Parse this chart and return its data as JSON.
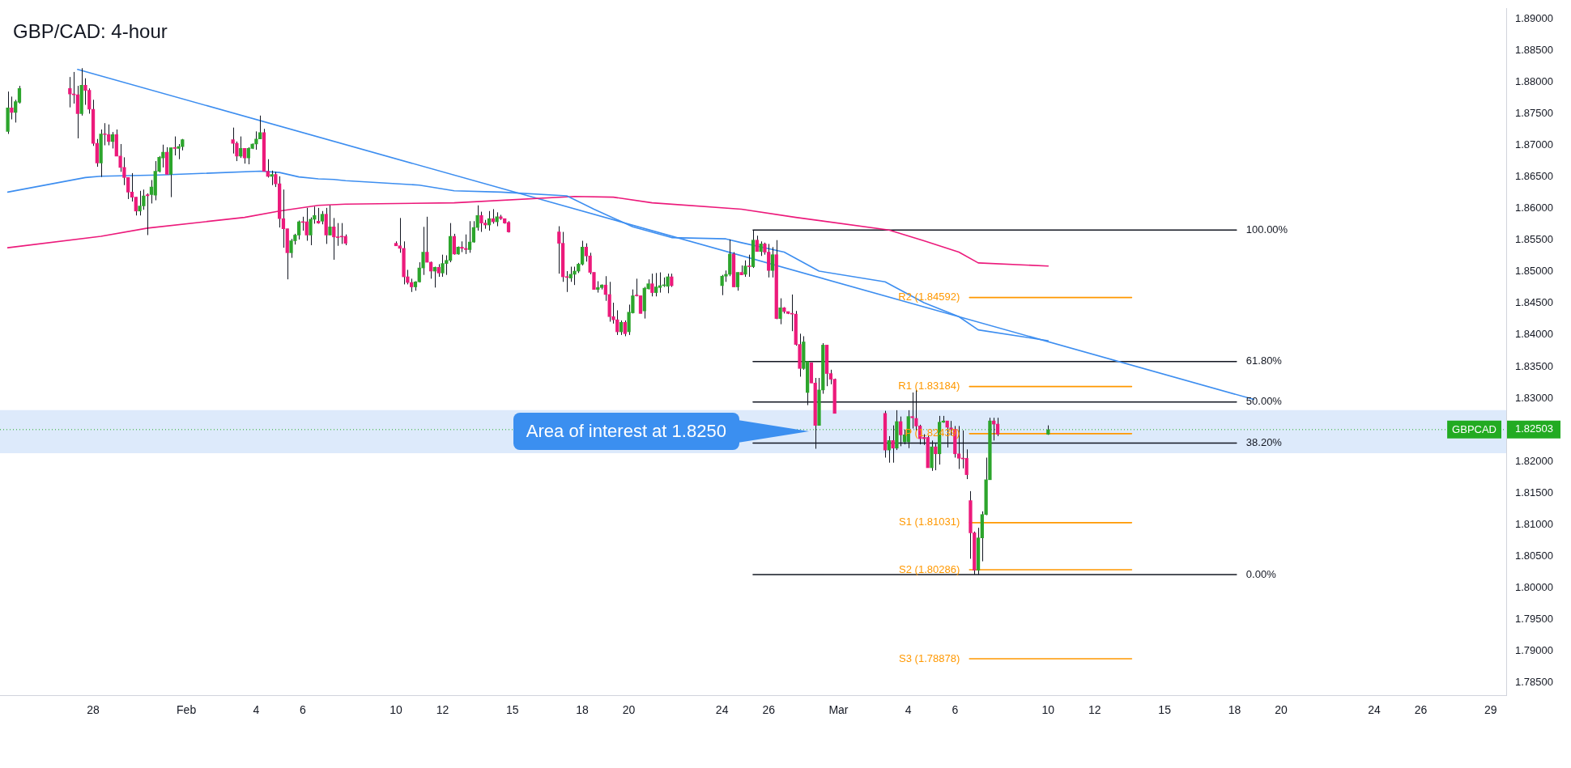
{
  "chart_data": {
    "type": "candlestick",
    "title": "GBP/CAD: 4-hour",
    "x": [
      "--01-24T08:00",
      "--01-24T12:00",
      "--01-24T16:00",
      "--01-24T20:00",
      "--01-27T00:00",
      "--01-27T04:00",
      "--01-27T08:00",
      "--01-27T12:00",
      "--01-27T16:00",
      "--01-27T20:00",
      "--01-28T00:00",
      "--01-28T04:00",
      "--01-28T08:00",
      "--01-28T12:00",
      "--01-28T16:00",
      "--01-28T20:00",
      "--01-29T00:00",
      "--01-29T04:00",
      "--01-29T08:00",
      "--01-29T12:00",
      "--01-29T16:00",
      "--01-29T20:00",
      "--01-30T00:00",
      "--01-30T04:00",
      "--01-30T08:00",
      "--01-30T12:00",
      "--01-30T16:00",
      "--01-30T20:00",
      "--01-31T00:00",
      "--01-31T04:00",
      "--01-31T08:00",
      "--01-31T12:00",
      "--01-31T16:00",
      "--01-31T20:00",
      "--02-03T00:00",
      "--02-03T04:00",
      "--02-03T08:00",
      "--02-03T12:00",
      "--02-03T16:00",
      "--02-03T20:00",
      "--02-04T00:00",
      "--02-04T04:00",
      "--02-04T08:00",
      "--02-04T12:00",
      "--02-04T16:00",
      "--02-04T20:00",
      "--02-05T00:00",
      "--02-05T04:00",
      "--02-05T08:00",
      "--02-05T12:00",
      "--02-05T16:00",
      "--02-05T20:00",
      "--02-06T00:00",
      "--02-06T04:00",
      "--02-06T08:00",
      "--02-06T12:00",
      "--02-06T16:00",
      "--02-06T20:00",
      "--02-07T00:00",
      "--02-07T04:00",
      "--02-07T08:00",
      "--02-07T12:00",
      "--02-07T16:00",
      "--02-07T20:00",
      "--02-10T00:00",
      "--02-10T04:00",
      "--02-10T08:00",
      "--02-10T12:00",
      "--02-10T16:00",
      "--02-10T20:00",
      "--02-11T00:00",
      "--02-11T04:00",
      "--02-11T08:00",
      "--02-11T12:00",
      "--02-11T16:00",
      "--02-11T20:00",
      "--02-12T00:00",
      "--02-12T04:00",
      "--02-12T08:00",
      "--02-12T12:00",
      "--02-12T16:00",
      "--02-12T20:00",
      "--02-13T00:00",
      "--02-13T04:00",
      "--02-13T08:00",
      "--02-13T12:00",
      "--02-13T16:00",
      "--02-13T20:00",
      "--02-14T00:00",
      "--02-14T04:00",
      "--02-14T08:00",
      "--02-14T12:00",
      "--02-14T16:00",
      "--02-14T20:00",
      "--02-17T00:00",
      "--02-17T04:00",
      "--02-17T08:00",
      "--02-17T12:00",
      "--02-17T16:00",
      "--02-17T20:00",
      "--02-18T00:00",
      "--02-18T04:00",
      "--02-18T08:00",
      "--02-18T12:00",
      "--02-18T16:00",
      "--02-18T20:00",
      "--02-19T00:00",
      "--02-19T04:00",
      "--02-19T08:00",
      "--02-19T12:00",
      "--02-19T16:00",
      "--02-19T20:00",
      "--02-20T00:00",
      "--02-20T04:00",
      "--02-20T08:00",
      "--02-20T12:00",
      "--02-20T16:00",
      "--02-20T20:00",
      "--02-21T00:00",
      "--02-21T04:00",
      "--02-21T08:00",
      "--02-21T12:00",
      "--02-21T16:00",
      "--02-21T20:00",
      "--02-24T00:00",
      "--02-24T04:00",
      "--02-24T08:00",
      "--02-24T12:00",
      "--02-24T16:00",
      "--02-24T20:00",
      "--02-25T00:00",
      "--02-25T04:00",
      "--02-25T08:00",
      "--02-25T12:00",
      "--02-25T16:00",
      "--02-25T20:00",
      "--02-26T00:00",
      "--02-26T04:00",
      "--02-26T08:00",
      "--02-26T12:00",
      "--02-26T16:00",
      "--02-26T20:00",
      "--02-27T00:00",
      "--02-27T04:00",
      "--02-27T08:00",
      "--02-27T12:00",
      "--02-27T16:00",
      "--02-27T20:00",
      "--02-28T00:00",
      "--02-28T04:00",
      "--02-28T08:00",
      "--02-28T12:00",
      "--02-28T16:00",
      "--02-28T20:00",
      "--03-03T00:00",
      "--03-03T04:00",
      "--03-03T08:00",
      "--03-03T12:00",
      "--03-03T16:00",
      "--03-03T20:00",
      "--03-04T00:00",
      "--03-04T04:00",
      "--03-04T08:00",
      "--03-04T12:00",
      "--03-04T16:00",
      "--03-04T20:00",
      "--03-05T00:00",
      "--03-05T04:00",
      "--03-05T08:00",
      "--03-05T12:00",
      "--03-05T16:00",
      "--03-05T20:00",
      "--03-06T00:00",
      "--03-06T04:00",
      "--03-06T08:00",
      "--03-06T12:00",
      "--03-06T16:00",
      "--03-06T20:00",
      "--03-07T00:00",
      "--03-07T04:00",
      "--03-07T08:00",
      "--03-07T12:00",
      "--03-07T16:00",
      "--03-07T20:00",
      "--03-10T00:00"
    ],
    "ohlc": [
      [
        1.8722,
        1.8785,
        1.8718,
        1.8759
      ],
      [
        1.8759,
        1.8777,
        1.8741,
        1.8752
      ],
      [
        1.8752,
        1.8772,
        1.8736,
        1.8769
      ],
      [
        1.8768,
        1.8794,
        1.8766,
        1.879
      ],
      [
        1.879,
        1.8808,
        1.876,
        1.8781
      ],
      [
        1.8781,
        1.8816,
        1.8766,
        1.878
      ],
      [
        1.878,
        1.8794,
        1.8711,
        1.875
      ],
      [
        1.875,
        1.8822,
        1.8747,
        1.8795
      ],
      [
        1.8795,
        1.8806,
        1.8764,
        1.8787
      ],
      [
        1.8787,
        1.879,
        1.875,
        1.8757
      ],
      [
        1.8757,
        1.8772,
        1.8699,
        1.8703
      ],
      [
        1.8703,
        1.871,
        1.8666,
        1.8672
      ],
      [
        1.8672,
        1.8725,
        1.865,
        1.8718
      ],
      [
        1.8718,
        1.8735,
        1.87,
        1.8717
      ],
      [
        1.8717,
        1.8733,
        1.87,
        1.8706
      ],
      [
        1.8706,
        1.8721,
        1.8695,
        1.8717
      ],
      [
        1.8717,
        1.8725,
        1.8683,
        1.8683
      ],
      [
        1.8683,
        1.8702,
        1.8658,
        1.8665
      ],
      [
        1.8665,
        1.8681,
        1.8637,
        1.8649
      ],
      [
        1.8649,
        1.8649,
        1.8615,
        1.8626
      ],
      [
        1.8626,
        1.8656,
        1.8611,
        1.8618
      ],
      [
        1.8618,
        1.8618,
        1.8589,
        1.8596
      ],
      [
        1.8596,
        1.8628,
        1.8589,
        1.8604
      ],
      [
        1.8604,
        1.863,
        1.8598,
        1.862
      ],
      [
        1.8622,
        1.8624,
        1.8558,
        1.862
      ],
      [
        1.8622,
        1.8645,
        1.8608,
        1.8634
      ],
      [
        1.8621,
        1.8675,
        1.8613,
        1.8659
      ],
      [
        1.8659,
        1.8683,
        1.8657,
        1.8681
      ],
      [
        1.868,
        1.8701,
        1.8665,
        1.8689
      ],
      [
        1.8689,
        1.8697,
        1.8654,
        1.8654
      ],
      [
        1.8654,
        1.8696,
        1.8618,
        1.8696
      ],
      [
        1.8696,
        1.8714,
        1.8684,
        1.8695
      ],
      [
        1.8695,
        1.8702,
        1.8678,
        1.8698
      ],
      [
        1.8698,
        1.871,
        1.8692,
        1.8709
      ],
      [
        1.8709,
        1.8728,
        1.8687,
        1.8703
      ],
      [
        1.8703,
        1.8706,
        1.8675,
        1.8683
      ],
      [
        1.8683,
        1.8714,
        1.868,
        1.8695
      ],
      [
        1.8695,
        1.8695,
        1.8671,
        1.868
      ],
      [
        1.868,
        1.8697,
        1.867,
        1.8695
      ],
      [
        1.8695,
        1.8703,
        1.8694,
        1.8702
      ],
      [
        1.8702,
        1.8722,
        1.8693,
        1.871
      ],
      [
        1.871,
        1.8747,
        1.871,
        1.872
      ],
      [
        1.872,
        1.8726,
        1.8659,
        1.8659
      ],
      [
        1.8659,
        1.8678,
        1.8649,
        1.8651
      ],
      [
        1.8651,
        1.866,
        1.8637,
        1.8654
      ],
      [
        1.8654,
        1.8658,
        1.8634,
        1.8639
      ],
      [
        1.8639,
        1.8651,
        1.857,
        1.8584
      ],
      [
        1.8584,
        1.863,
        1.8538,
        1.8568
      ],
      [
        1.8568,
        1.8568,
        1.8488,
        1.853
      ],
      [
        1.853,
        1.8552,
        1.8522,
        1.8549
      ],
      [
        1.8549,
        1.856,
        1.8543,
        1.8558
      ],
      [
        1.8558,
        1.8581,
        1.8551,
        1.8579
      ],
      [
        1.8579,
        1.8587,
        1.8565,
        1.8578
      ],
      [
        1.8579,
        1.8601,
        1.8549,
        1.8558
      ],
      [
        1.8558,
        1.8586,
        1.8542,
        1.8583
      ],
      [
        1.8583,
        1.8603,
        1.8576,
        1.8589
      ],
      [
        1.858,
        1.8601,
        1.8576,
        1.8577
      ],
      [
        1.858,
        1.8596,
        1.8575,
        1.8591
      ],
      [
        1.8591,
        1.8601,
        1.8544,
        1.8558
      ],
      [
        1.8558,
        1.8605,
        1.8558,
        1.8571
      ],
      [
        1.8571,
        1.8585,
        1.8519,
        1.8555
      ],
      [
        1.8555,
        1.8577,
        1.8541,
        1.8554
      ],
      [
        1.8556,
        1.8577,
        1.8544,
        1.8555
      ],
      [
        1.8556,
        1.8559,
        1.8542,
        1.8545
      ],
      [
        1.8545,
        1.8548,
        1.8541,
        1.8541
      ],
      [
        1.8541,
        1.8585,
        1.853,
        1.8537
      ],
      [
        1.8537,
        1.8548,
        1.848,
        1.8492
      ],
      [
        1.8492,
        1.8503,
        1.848,
        1.8483
      ],
      [
        1.8483,
        1.8489,
        1.8468,
        1.8476
      ],
      [
        1.8476,
        1.8485,
        1.847,
        1.8484
      ],
      [
        1.8484,
        1.8515,
        1.8483,
        1.8506
      ],
      [
        1.8506,
        1.8571,
        1.8495,
        1.8531
      ],
      [
        1.8531,
        1.8587,
        1.8515,
        1.8515
      ],
      [
        1.8515,
        1.8516,
        1.8489,
        1.8501
      ],
      [
        1.8501,
        1.8508,
        1.8475,
        1.8507
      ],
      [
        1.8507,
        1.8512,
        1.8492,
        1.8498
      ],
      [
        1.8498,
        1.8527,
        1.8492,
        1.8513
      ],
      [
        1.8513,
        1.8526,
        1.8495,
        1.8518
      ],
      [
        1.8518,
        1.8577,
        1.8515,
        1.8556
      ],
      [
        1.8556,
        1.856,
        1.8527,
        1.8528
      ],
      [
        1.8528,
        1.854,
        1.8527,
        1.8539
      ],
      [
        1.8539,
        1.8548,
        1.8531,
        1.8537
      ],
      [
        1.8537,
        1.8559,
        1.8528,
        1.8535
      ],
      [
        1.8535,
        1.858,
        1.853,
        1.8547
      ],
      [
        1.8547,
        1.858,
        1.8546,
        1.857
      ],
      [
        1.857,
        1.8605,
        1.8565,
        1.8589
      ],
      [
        1.8589,
        1.8595,
        1.8563,
        1.8577
      ],
      [
        1.8577,
        1.8582,
        1.8568,
        1.8574
      ],
      [
        1.8574,
        1.8596,
        1.8565,
        1.8584
      ],
      [
        1.8584,
        1.8599,
        1.8576,
        1.8579
      ],
      [
        1.8579,
        1.8594,
        1.8572,
        1.8587
      ],
      [
        1.8587,
        1.859,
        1.8582,
        1.8584
      ],
      [
        1.8584,
        1.8584,
        1.8576,
        1.8577
      ],
      [
        1.8578,
        1.858,
        1.8562,
        1.8563
      ],
      [
        1.8563,
        1.8572,
        1.8497,
        1.8545
      ],
      [
        1.8545,
        1.8563,
        1.8484,
        1.8492
      ],
      [
        1.8492,
        1.8501,
        1.8468,
        1.8491
      ],
      [
        1.849,
        1.8508,
        1.8484,
        1.8496
      ],
      [
        1.8496,
        1.8508,
        1.8479,
        1.8501
      ],
      [
        1.8501,
        1.8514,
        1.8498,
        1.8512
      ],
      [
        1.8512,
        1.8549,
        1.851,
        1.8539
      ],
      [
        1.8539,
        1.8545,
        1.8516,
        1.8525
      ],
      [
        1.8525,
        1.853,
        1.8496,
        1.8499
      ],
      [
        1.8499,
        1.8499,
        1.8472,
        1.8472
      ],
      [
        1.8472,
        1.8485,
        1.8467,
        1.8475
      ],
      [
        1.8475,
        1.848,
        1.8472,
        1.8479
      ],
      [
        1.8479,
        1.8493,
        1.8454,
        1.8464
      ],
      [
        1.8464,
        1.8484,
        1.8421,
        1.8429
      ],
      [
        1.8429,
        1.8451,
        1.8418,
        1.8424
      ],
      [
        1.8424,
        1.8439,
        1.84,
        1.8405
      ],
      [
        1.8405,
        1.8423,
        1.84,
        1.842
      ],
      [
        1.842,
        1.8423,
        1.8398,
        1.8402
      ],
      [
        1.8405,
        1.8448,
        1.84,
        1.8436
      ],
      [
        1.8435,
        1.8472,
        1.8434,
        1.8462
      ],
      [
        1.8463,
        1.8489,
        1.8461,
        1.8462
      ],
      [
        1.8462,
        1.8462,
        1.8434,
        1.8434
      ],
      [
        1.8438,
        1.8476,
        1.8426,
        1.8474
      ],
      [
        1.8473,
        1.8488,
        1.8472,
        1.8481
      ],
      [
        1.8481,
        1.8497,
        1.8461,
        1.8467
      ],
      [
        1.8467,
        1.8498,
        1.8461,
        1.8476
      ],
      [
        1.8475,
        1.8499,
        1.8467,
        1.8478
      ],
      [
        1.8478,
        1.8491,
        1.8476,
        1.8478
      ],
      [
        1.8477,
        1.8497,
        1.8466,
        1.8492
      ],
      [
        1.8492,
        1.8497,
        1.8476,
        1.8478
      ],
      [
        1.8478,
        1.8495,
        1.8463,
        1.8493
      ],
      [
        1.8493,
        1.8502,
        1.8484,
        1.8496
      ],
      [
        1.8496,
        1.8551,
        1.8493,
        1.8528
      ],
      [
        1.8528,
        1.8531,
        1.8476,
        1.8476
      ],
      [
        1.8476,
        1.8499,
        1.847,
        1.8499
      ],
      [
        1.8499,
        1.851,
        1.8495,
        1.8495
      ],
      [
        1.8496,
        1.8518,
        1.8492,
        1.8509
      ],
      [
        1.8509,
        1.8527,
        1.8492,
        1.8508
      ],
      [
        1.8508,
        1.8566,
        1.8506,
        1.855
      ],
      [
        1.855,
        1.8557,
        1.8532,
        1.8532
      ],
      [
        1.8532,
        1.8548,
        1.8525,
        1.8544
      ],
      [
        1.8544,
        1.8546,
        1.8527,
        1.8531
      ],
      [
        1.8531,
        1.8544,
        1.8491,
        1.8502
      ],
      [
        1.8502,
        1.8539,
        1.8491,
        1.8527
      ],
      [
        1.8527,
        1.855,
        1.8425,
        1.8426
      ],
      [
        1.8426,
        1.8458,
        1.8417,
        1.8443
      ],
      [
        1.8443,
        1.8444,
        1.8434,
        1.8437
      ],
      [
        1.8437,
        1.8437,
        1.8433,
        1.8434
      ],
      [
        1.8434,
        1.8464,
        1.8406,
        1.8433
      ],
      [
        1.8433,
        1.8438,
        1.8383,
        1.8385
      ],
      [
        1.8385,
        1.8402,
        1.8334,
        1.8347
      ],
      [
        1.8347,
        1.8398,
        1.8345,
        1.8389
      ],
      [
        1.8309,
        1.8358,
        1.8289,
        1.8358
      ],
      [
        1.8356,
        1.8356,
        1.8324,
        1.8324
      ],
      [
        1.8324,
        1.8332,
        1.822,
        1.8257
      ],
      [
        1.8257,
        1.8332,
        1.8257,
        1.8313
      ],
      [
        1.8313,
        1.8387,
        1.8307,
        1.8384
      ],
      [
        1.8384,
        1.8384,
        1.8319,
        1.8339
      ],
      [
        1.8339,
        1.8345,
        1.8322,
        1.833
      ],
      [
        1.833,
        1.8331,
        1.8276,
        1.8276
      ],
      [
        1.8276,
        1.828,
        1.8206,
        1.8218
      ],
      [
        1.8218,
        1.824,
        1.8198,
        1.8233
      ],
      [
        1.8233,
        1.8257,
        1.8198,
        1.8221
      ],
      [
        1.8221,
        1.8281,
        1.8218,
        1.8263
      ],
      [
        1.8263,
        1.8271,
        1.8224,
        1.8242
      ],
      [
        1.8231,
        1.825,
        1.8227,
        1.8242
      ],
      [
        1.8231,
        1.8281,
        1.8221,
        1.8271
      ],
      [
        1.8271,
        1.8309,
        1.8252,
        1.8269
      ],
      [
        1.8268,
        1.8314,
        1.8248,
        1.8256
      ],
      [
        1.8256,
        1.8258,
        1.8227,
        1.8236
      ],
      [
        1.8238,
        1.8243,
        1.8226,
        1.8236
      ],
      [
        1.8238,
        1.8241,
        1.819,
        1.819
      ],
      [
        1.819,
        1.8233,
        1.8185,
        1.8223
      ],
      [
        1.8223,
        1.8228,
        1.8186,
        1.8212
      ],
      [
        1.8212,
        1.8272,
        1.8195,
        1.8262
      ],
      [
        1.8262,
        1.8272,
        1.8261,
        1.8264
      ],
      [
        1.8264,
        1.8264,
        1.8222,
        1.8254
      ],
      [
        1.8253,
        1.8264,
        1.8241,
        1.8251
      ],
      [
        1.8251,
        1.8256,
        1.8206,
        1.8212
      ],
      [
        1.8212,
        1.8256,
        1.8188,
        1.8205
      ],
      [
        1.8205,
        1.8249,
        1.8189,
        1.8204
      ],
      [
        1.8205,
        1.8219,
        1.8172,
        1.8179
      ],
      [
        1.8138,
        1.8153,
        1.8046,
        1.8087
      ],
      [
        1.8087,
        1.8089,
        1.8021,
        1.8028
      ],
      [
        1.8028,
        1.8095,
        1.8021,
        1.8079
      ],
      [
        1.8079,
        1.8121,
        1.8042,
        1.8116
      ],
      [
        1.8116,
        1.8206,
        1.8115,
        1.8171
      ],
      [
        1.8171,
        1.8269,
        1.8171,
        1.8264
      ],
      [
        1.8264,
        1.8269,
        1.8233,
        1.8259
      ],
      [
        1.8259,
        1.8269,
        1.824,
        1.8243
      ],
      [
        1.8243,
        1.8257,
        1.8242,
        1.825
      ]
    ],
    "series": [
      {
        "type": "line",
        "color": "#3d8ef0",
        "x": [
          "--01-24T08:00",
          "--01-27T16:00",
          "--01-28T08:00",
          "--01-30T20:00",
          "--02-04T04:00",
          "--02-05T00:00",
          "--02-05T20:00",
          "--02-06T16:00",
          "--02-07T08:00",
          "--02-07T20:00",
          "--02-11T00:00",
          "--02-12T12:00",
          "--02-14T12:00",
          "--02-17T08:00",
          "--02-18T12:00",
          "--02-20T04:00",
          "--02-21T20:00",
          "--02-24T04:00",
          "--02-24T20:00",
          "--02-26T16:00",
          "--02-28T04:00",
          "--03-03T00:00",
          "--03-04T16:00",
          "--03-06T04:00",
          "--03-07T00:00",
          "--03-10T00:00"
        ],
        "values": [
          1.8626,
          1.8649,
          1.8651,
          1.8653,
          1.8659,
          1.8657,
          1.865,
          1.8647,
          1.8646,
          1.8644,
          1.8637,
          1.8628,
          1.8626,
          1.862,
          1.8599,
          1.8571,
          1.8554,
          1.8552,
          1.8546,
          1.8531,
          1.8501,
          1.8484,
          1.8451,
          1.8429,
          1.8408,
          1.8391
        ]
      },
      {
        "type": "line",
        "color": "#ec1a7b",
        "x": [
          "--01-24T08:00",
          "--01-28T08:00",
          "--01-30T08:00",
          "--02-03T12:00",
          "--02-05T00:00",
          "--02-06T16:00",
          "--02-07T20:00",
          "--02-12T12:00",
          "--02-17T16:00",
          "--02-19T08:00",
          "--02-21T00:00",
          "--02-24T20:00",
          "--02-27T04:00",
          "--03-03T04:00",
          "--03-04T16:00",
          "--03-06T04:00",
          "--03-07T00:00",
          "--03-10T00:00"
        ],
        "values": [
          1.8538,
          1.8556,
          1.8569,
          1.8586,
          1.8596,
          1.8605,
          1.8607,
          1.8609,
          1.8619,
          1.8618,
          1.8609,
          1.8599,
          1.8586,
          1.8566,
          1.8549,
          1.8531,
          1.8514,
          1.8509
        ]
      },
      {
        "type": "line",
        "color": "#3d8ef0",
        "x": [
          "--01-27T08:00",
          "--03-18T20:00"
        ],
        "values": [
          1.882,
          1.8298
        ]
      },
      {
        "type": "line",
        "color": "#131722",
        "x": [
          "--02-25T08:00",
          "--03-18T02:00"
        ],
        "values": [
          1.8566,
          1.8566
        ]
      },
      {
        "type": "line",
        "color": "#131722",
        "x": [
          "--02-25T08:00",
          "--03-18T02:00"
        ],
        "values": [
          1.8358,
          1.8358
        ]
      },
      {
        "type": "line",
        "color": "#131722",
        "x": [
          "--02-25T08:00",
          "--03-18T02:00"
        ],
        "values": [
          1.8294,
          1.8294
        ]
      },
      {
        "type": "line",
        "color": "#131722",
        "x": [
          "--02-25T08:00",
          "--03-18T02:00"
        ],
        "values": [
          1.8229,
          1.8229
        ]
      },
      {
        "type": "line",
        "color": "#131722",
        "x": [
          "--02-25T08:00",
          "--03-18T02:00"
        ],
        "values": [
          1.8021,
          1.8021
        ]
      },
      {
        "type": "line",
        "color": "#ff9800",
        "x": [
          "--03-06T15:00",
          "--03-13T14:00"
        ],
        "values": [
          1.84592,
          1.84592
        ]
      },
      {
        "type": "line",
        "color": "#ff9800",
        "x": [
          "--03-06T15:00",
          "--03-13T14:00"
        ],
        "values": [
          1.83184,
          1.83184
        ]
      },
      {
        "type": "line",
        "color": "#ff9800",
        "x": [
          "--03-06T15:00",
          "--03-13T14:00"
        ],
        "values": [
          1.82439,
          1.82439
        ]
      },
      {
        "type": "line",
        "color": "#ff9800",
        "x": [
          "--03-06T15:00",
          "--03-13T14:00"
        ],
        "values": [
          1.81031,
          1.81031
        ]
      },
      {
        "type": "line",
        "color": "#ff9800",
        "x": [
          "--03-06T15:00",
          "--03-13T14:00"
        ],
        "values": [
          1.80286,
          1.80286
        ]
      },
      {
        "type": "line",
        "color": "#ff9800",
        "x": [
          "--03-06T15:00",
          "--03-13T14:00"
        ],
        "values": [
          1.78878,
          1.78878
        ]
      }
    ],
    "annotations": [
      {
        "text": "100.00%",
        "x": "--03-18T02:00",
        "y": 1.8566
      },
      {
        "text": "61.80%",
        "x": "--03-18T02:00",
        "y": 1.8358
      },
      {
        "text": "50.00%",
        "x": "--03-18T02:00",
        "y": 1.8294
      },
      {
        "text": "38.20%",
        "x": "--03-18T02:00",
        "y": 1.8229
      },
      {
        "text": "0.00%",
        "x": "--03-18T02:00",
        "y": 1.8021
      },
      {
        "text": "R2 (1.84592)",
        "x": "--03-06T15:00",
        "y": 1.84592
      },
      {
        "text": "R1 (1.83184)",
        "x": "--03-06T15:00",
        "y": 1.83184
      },
      {
        "text": "P (1.82439)",
        "x": "--03-06T15:00",
        "y": 1.82439
      },
      {
        "text": "S1 (1.81031)",
        "x": "--03-06T15:00",
        "y": 1.81031
      },
      {
        "text": "S2 (1.80286)",
        "x": "--03-06T15:00",
        "y": 1.80286
      },
      {
        "text": "S3 (1.78878)",
        "x": "--03-06T15:00",
        "y": 1.78878
      },
      "Area of interest at 1.8250"
    ],
    "bands": [
      {
        "axis": "y",
        "from": 1.8213,
        "to": 1.8281,
        "color": "#ddeafb"
      }
    ],
    "ref_lines": [
      {
        "axis": "y",
        "value": 1.82503,
        "label": "GBPCAD",
        "color": "#22ab22",
        "line_style": "dotted"
      }
    ],
    "xlim": [
      "--01-24T00:00",
      "--03-29T16:00"
    ],
    "xticks": [
      {
        "value": "--01-28",
        "label": "28"
      },
      {
        "value": "--02-01",
        "label": "Feb"
      },
      {
        "value": "--02-04",
        "label": "4"
      },
      {
        "value": "--02-06",
        "label": "6"
      },
      {
        "value": "--02-10",
        "label": "10"
      },
      {
        "value": "--02-12",
        "label": "12"
      },
      {
        "value": "--02-15",
        "label": "15"
      },
      {
        "value": "--02-18",
        "label": "18"
      },
      {
        "value": "--02-20",
        "label": "20"
      },
      {
        "value": "--02-24",
        "label": "24"
      },
      {
        "value": "--02-26",
        "label": "26"
      },
      {
        "value": "--03-01",
        "label": "Mar"
      },
      {
        "value": "--03-04",
        "label": "4"
      },
      {
        "value": "--03-06",
        "label": "6"
      },
      {
        "value": "--03-10",
        "label": "10"
      },
      {
        "value": "--03-12",
        "label": "12"
      },
      {
        "value": "--03-15",
        "label": "15"
      },
      {
        "value": "--03-18",
        "label": "18"
      },
      {
        "value": "--03-20",
        "label": "20"
      },
      {
        "value": "--03-24",
        "label": "24"
      },
      {
        "value": "--03-26",
        "label": "26"
      },
      {
        "value": "--03-29",
        "label": "29"
      }
    ],
    "ylim": [
      1.783,
      1.8916
    ],
    "yticks": [
      {
        "value": 1.785,
        "label": "1.78500"
      },
      {
        "value": 1.79,
        "label": "1.79000"
      },
      {
        "value": 1.795,
        "label": "1.79500"
      },
      {
        "value": 1.8,
        "label": "1.80000"
      },
      {
        "value": 1.805,
        "label": "1.80500"
      },
      {
        "value": 1.81,
        "label": "1.81000"
      },
      {
        "value": 1.815,
        "label": "1.81500"
      },
      {
        "value": 1.82,
        "label": "1.82000"
      },
      {
        "value": 1.82503,
        "label": "1.82503"
      },
      {
        "value": 1.83,
        "label": "1.83000"
      },
      {
        "value": 1.835,
        "label": "1.83500"
      },
      {
        "value": 1.84,
        "label": "1.84000"
      },
      {
        "value": 1.845,
        "label": "1.84500"
      },
      {
        "value": 1.85,
        "label": "1.85000"
      },
      {
        "value": 1.855,
        "label": "1.85500"
      },
      {
        "value": 1.86,
        "label": "1.86000"
      },
      {
        "value": 1.865,
        "label": "1.86500"
      },
      {
        "value": 1.87,
        "label": "1.87000"
      },
      {
        "value": 1.875,
        "label": "1.87500"
      },
      {
        "value": 1.88,
        "label": "1.88000"
      },
      {
        "value": 1.885,
        "label": "1.88500"
      },
      {
        "value": 1.89,
        "label": "1.89000"
      }
    ],
    "legend": false
  }
}
